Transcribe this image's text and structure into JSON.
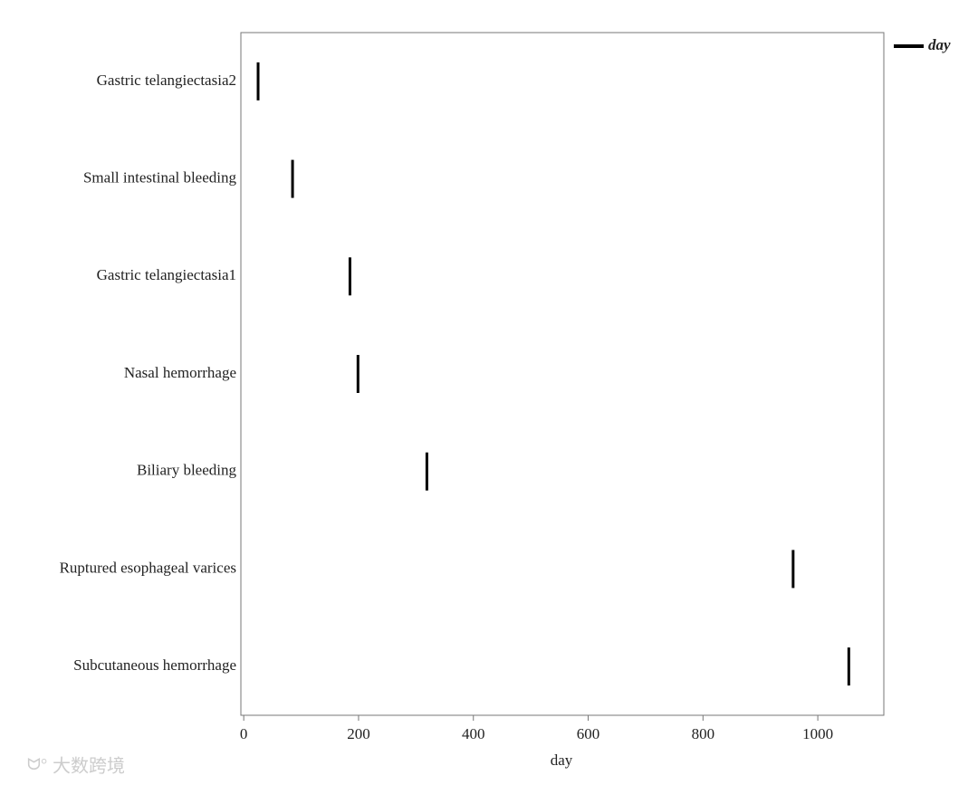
{
  "chart_data": {
    "type": "scatter",
    "marker": "vline",
    "color": "#000000",
    "categories": [
      "Gastric telangiectasia2",
      "Small intestinal bleeding",
      "Gastric telangiectasia1",
      "Nasal hemorrhage",
      "Biliary bleeding",
      "Ruptured esophageal varices",
      "Subcutaneous hemorrhage"
    ],
    "series": [
      {
        "name": "day",
        "color": "#000000",
        "values": [
          25,
          85,
          185,
          199,
          319,
          957,
          1054
        ]
      }
    ],
    "xlabel": "day",
    "xlim": [
      -5,
      1115
    ],
    "xticks": [
      0,
      200,
      400,
      600,
      800,
      1000
    ],
    "legend": "top-right",
    "grid": false,
    "watermark": "大数跨境"
  }
}
